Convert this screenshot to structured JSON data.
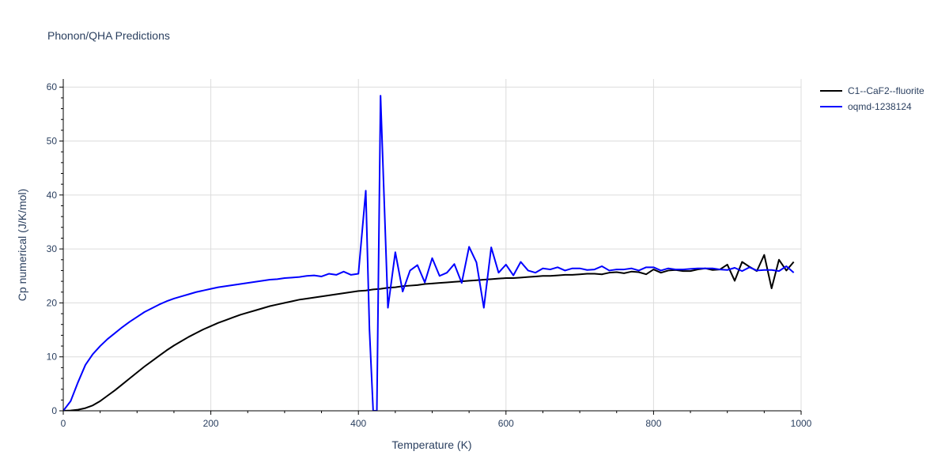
{
  "chart_data": {
    "type": "line",
    "title": "Phonon/QHA Predictions",
    "xlabel": "Temperature (K)",
    "ylabel": "Cp numerical (J/K/mol)",
    "xlim": [
      0,
      1000
    ],
    "ylim": [
      0,
      61.5
    ],
    "xticks": [
      0,
      200,
      400,
      600,
      800,
      1000
    ],
    "yticks": [
      0,
      10,
      20,
      30,
      40,
      50,
      60
    ],
    "grid": true,
    "legend_position": "top-right",
    "series": [
      {
        "name": "C1--CaF2--fluorite",
        "color": "#000000",
        "x": [
          0,
          10,
          20,
          30,
          40,
          50,
          60,
          70,
          80,
          90,
          100,
          110,
          120,
          130,
          140,
          150,
          160,
          170,
          180,
          190,
          200,
          210,
          220,
          230,
          240,
          250,
          260,
          270,
          280,
          290,
          300,
          310,
          320,
          330,
          340,
          350,
          360,
          370,
          380,
          390,
          400,
          410,
          420,
          430,
          440,
          450,
          460,
          470,
          480,
          490,
          500,
          510,
          520,
          530,
          540,
          550,
          560,
          570,
          580,
          590,
          600,
          610,
          620,
          630,
          640,
          650,
          660,
          670,
          680,
          690,
          700,
          710,
          720,
          730,
          740,
          750,
          760,
          770,
          780,
          790,
          800,
          810,
          820,
          830,
          840,
          850,
          860,
          870,
          880,
          890,
          900,
          910,
          920,
          930,
          940,
          950,
          960,
          970,
          980,
          990
        ],
        "y": [
          0,
          0.05,
          0.2,
          0.5,
          1.0,
          1.8,
          2.8,
          3.8,
          4.9,
          6.0,
          7.1,
          8.2,
          9.2,
          10.2,
          11.2,
          12.1,
          12.9,
          13.7,
          14.4,
          15.1,
          15.7,
          16.3,
          16.8,
          17.3,
          17.8,
          18.2,
          18.6,
          19.0,
          19.4,
          19.7,
          20.0,
          20.3,
          20.6,
          20.8,
          21.0,
          21.2,
          21.4,
          21.6,
          21.8,
          22.0,
          22.2,
          22.3,
          22.5,
          22.6,
          22.8,
          22.9,
          23.1,
          23.2,
          23.3,
          23.5,
          23.6,
          23.7,
          23.8,
          23.9,
          24.0,
          24.1,
          24.2,
          24.3,
          24.4,
          24.5,
          24.6,
          24.6,
          24.7,
          24.8,
          24.9,
          25.0,
          25.0,
          25.1,
          25.2,
          25.2,
          25.3,
          25.4,
          25.4,
          25.3,
          25.6,
          25.7,
          25.5,
          25.8,
          25.7,
          25.3,
          26.2,
          25.6,
          26.0,
          26.1,
          25.9,
          25.9,
          26.2,
          26.4,
          26.1,
          26.2,
          27.1,
          24.1,
          27.6,
          26.7,
          25.9,
          28.9,
          22.7,
          28.0,
          26.0,
          27.6
        ]
      },
      {
        "name": "oqmd-1238124",
        "color": "#0000ff",
        "x": [
          0,
          10,
          20,
          30,
          40,
          50,
          60,
          70,
          80,
          90,
          100,
          110,
          120,
          130,
          140,
          150,
          160,
          170,
          180,
          190,
          200,
          210,
          220,
          230,
          240,
          250,
          260,
          270,
          280,
          290,
          300,
          310,
          320,
          330,
          340,
          350,
          360,
          370,
          380,
          390,
          400,
          410,
          415,
          420,
          425,
          430,
          440,
          450,
          460,
          470,
          480,
          490,
          500,
          510,
          520,
          530,
          540,
          550,
          560,
          570,
          580,
          590,
          600,
          610,
          620,
          630,
          640,
          650,
          660,
          670,
          680,
          690,
          700,
          710,
          720,
          730,
          740,
          750,
          760,
          770,
          780,
          790,
          800,
          810,
          820,
          830,
          840,
          850,
          860,
          870,
          880,
          890,
          900,
          910,
          920,
          930,
          940,
          950,
          960,
          970,
          980,
          990
        ],
        "y": [
          0,
          1.8,
          5.3,
          8.5,
          10.5,
          12.0,
          13.3,
          14.4,
          15.5,
          16.5,
          17.4,
          18.3,
          19.0,
          19.7,
          20.3,
          20.8,
          21.2,
          21.6,
          22.0,
          22.3,
          22.6,
          22.9,
          23.1,
          23.3,
          23.5,
          23.7,
          23.9,
          24.1,
          24.3,
          24.4,
          24.6,
          24.7,
          24.8,
          25.0,
          25.1,
          24.9,
          25.4,
          25.2,
          25.8,
          25.2,
          25.4,
          40.8,
          15.0,
          0,
          0,
          58.4,
          19.1,
          29.4,
          22.1,
          26.0,
          27.0,
          23.8,
          28.3,
          25.0,
          25.6,
          27.2,
          23.7,
          30.4,
          27.5,
          19.1,
          30.3,
          25.6,
          27.1,
          25.1,
          27.6,
          26.0,
          25.6,
          26.4,
          26.2,
          26.6,
          26.0,
          26.4,
          26.4,
          26.1,
          26.2,
          26.8,
          26.0,
          26.2,
          26.2,
          26.4,
          26.0,
          26.6,
          26.6,
          26.0,
          26.4,
          26.2,
          26.2,
          26.3,
          26.4,
          26.4,
          26.4,
          26.2,
          26.1,
          26.5,
          25.9,
          26.6,
          26.0,
          26.1,
          26.1,
          25.9,
          26.8,
          25.6
        ]
      }
    ]
  }
}
